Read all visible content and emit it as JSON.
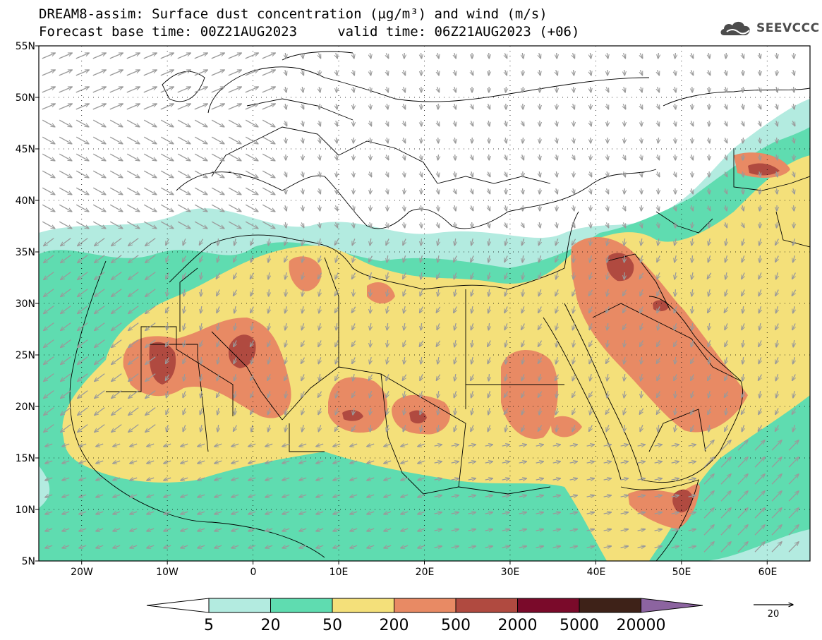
{
  "title": {
    "line1": "DREAM8-assim: Surface dust concentration (µg/m³) and wind (m/s)",
    "line2": "Forecast base time: 00Z21AUG2023     valid time: 06Z21AUG2023 (+06)"
  },
  "logo": {
    "text": "SEEVCCC",
    "icon": "cloud-logo-icon",
    "color": "#4c4c4c"
  },
  "axes": {
    "lat_labels": [
      "55N",
      "50N",
      "45N",
      "40N",
      "35N",
      "30N",
      "25N",
      "20N",
      "15N",
      "10N",
      "5N"
    ],
    "lon_labels": [
      "20W",
      "10W",
      "0",
      "10E",
      "20E",
      "30E",
      "40E",
      "50E",
      "60E"
    ]
  },
  "colorbar": {
    "labels": [
      "5",
      "20",
      "50",
      "200",
      "500",
      "2000",
      "5000",
      "20000"
    ],
    "colors": [
      "#ffffff",
      "#b3ebe0",
      "#5fdcb0",
      "#f4e07a",
      "#e88a64",
      "#b04a40",
      "#7a0a2a",
      "#3e2218",
      "#8c64a0"
    ]
  },
  "wind_reference": {
    "value": "20"
  },
  "map_colors": {
    "land_background": "#ffffff",
    "border": "#000000",
    "arrow": "#9a9a9a"
  }
}
